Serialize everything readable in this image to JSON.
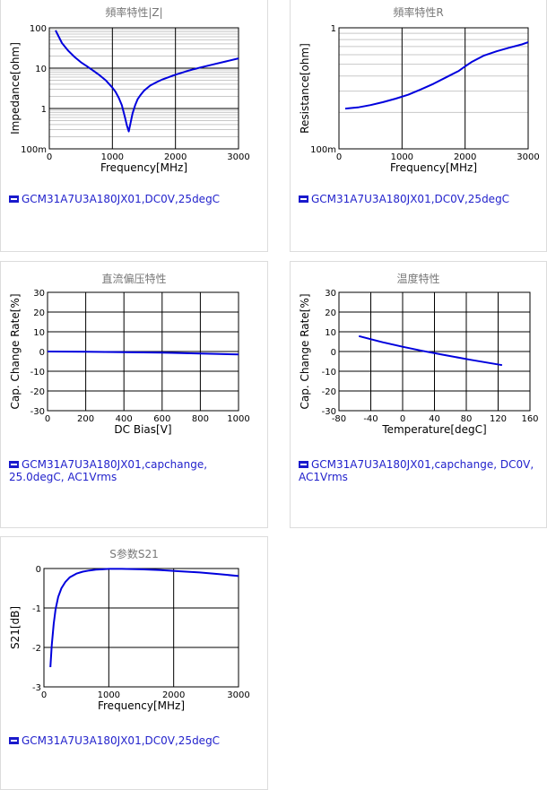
{
  "colors": {
    "series": "#0000dd",
    "title": "#777777",
    "legend_text": "#2222cc",
    "grid_major": "#000000",
    "grid_minor": "#c8c8c8"
  },
  "chart_data": [
    {
      "id": "impedance",
      "type": "line",
      "title": "頻率特性|Z|",
      "xlabel": "Frequency[MHz]",
      "ylabel": "Impedance[ohm]",
      "xlim": [
        0,
        3000
      ],
      "ylim": [
        0.1,
        100
      ],
      "yscale": "log",
      "xticks": [
        "0",
        "1000",
        "2000",
        "3000"
      ],
      "yticks": [
        "100",
        "10",
        "1",
        "100m"
      ],
      "legend": "GCM31A7U3A180JX01,DC0V,25degC",
      "series": [
        {
          "x": [
            100,
            200,
            300,
            400,
            500,
            600,
            700,
            800,
            900,
            1000,
            1050,
            1100,
            1150,
            1200,
            1230,
            1260,
            1290,
            1320,
            1360,
            1400,
            1450,
            1500,
            1600,
            1700,
            1800,
            2000,
            2200,
            2400,
            2600,
            2800,
            3000
          ],
          "y": [
            86,
            42,
            27,
            19,
            14,
            11,
            8.6,
            6.6,
            4.9,
            3.3,
            2.6,
            1.85,
            1.2,
            0.6,
            0.38,
            0.27,
            0.45,
            0.75,
            1.2,
            1.7,
            2.2,
            2.75,
            3.7,
            4.5,
            5.3,
            6.9,
            8.6,
            10.4,
            12.4,
            14.7,
            17.5
          ]
        }
      ]
    },
    {
      "id": "resistance",
      "type": "line",
      "title": "頻率特性R",
      "xlabel": "Frequency[MHz]",
      "ylabel": "Resistance[ohm]",
      "xlim": [
        0,
        3000
      ],
      "ylim": [
        0.1,
        1
      ],
      "yscale": "log",
      "xticks": [
        "0",
        "1000",
        "2000",
        "3000"
      ],
      "yticks": [
        "1",
        "100m"
      ],
      "legend": "GCM31A7U3A180JX01,DC0V,25degC",
      "series": [
        {
          "x": [
            100,
            300,
            500,
            700,
            900,
            1100,
            1300,
            1500,
            1700,
            1900,
            2000,
            2100,
            2300,
            2500,
            2700,
            2900,
            3000
          ],
          "y": [
            0.215,
            0.22,
            0.23,
            0.243,
            0.26,
            0.28,
            0.31,
            0.345,
            0.39,
            0.44,
            0.48,
            0.52,
            0.59,
            0.64,
            0.685,
            0.73,
            0.76
          ]
        }
      ]
    },
    {
      "id": "dcbias",
      "type": "line",
      "title": "直流偏压特性",
      "xlabel": "DC Bias[V]",
      "ylabel": "Cap. Change Rate[%]",
      "xlim": [
        0,
        1000
      ],
      "ylim": [
        -30,
        30
      ],
      "xticks": [
        "0",
        "200",
        "400",
        "600",
        "800",
        "1000"
      ],
      "yticks": [
        "30",
        "20",
        "10",
        "0",
        "-10",
        "-20",
        "-30"
      ],
      "legend": "GCM31A7U3A180JX01,capchange, 25.0degC, AC1Vrms",
      "series": [
        {
          "x": [
            0,
            200,
            400,
            600,
            800,
            1000
          ],
          "y": [
            0,
            -0.1,
            -0.3,
            -0.6,
            -1.0,
            -1.5
          ]
        }
      ]
    },
    {
      "id": "temperature",
      "type": "line",
      "title": "温度特性",
      "xlabel": "Temperature[degC]",
      "ylabel": "Cap. Change Rate[%]",
      "xlim": [
        -80,
        160
      ],
      "ylim": [
        -30,
        30
      ],
      "xticks": [
        "-80",
        "-40",
        "0",
        "40",
        "80",
        "120",
        "160"
      ],
      "yticks": [
        "30",
        "20",
        "10",
        "0",
        "-10",
        "-20",
        "-30"
      ],
      "legend": "GCM31A7U3A180JX01,capchange, DC0V, AC1Vrms",
      "series": [
        {
          "x": [
            -55,
            -25,
            0,
            25,
            50,
            85,
            125
          ],
          "y": [
            7.8,
            4.7,
            2.4,
            0.3,
            -1.6,
            -4.2,
            -6.9
          ]
        }
      ]
    },
    {
      "id": "s21",
      "type": "line",
      "title": "S参数S21",
      "xlabel": "Frequency[MHz]",
      "ylabel": "S21[dB]",
      "xlim": [
        0,
        3000
      ],
      "ylim": [
        -3,
        0
      ],
      "xticks": [
        "0",
        "1000",
        "2000",
        "3000"
      ],
      "yticks": [
        "0",
        "-1",
        "-2",
        "-3"
      ],
      "legend": "GCM31A7U3A180JX01,DC0V,25degC",
      "series": [
        {
          "x": [
            100,
            120,
            150,
            180,
            220,
            270,
            330,
            400,
            500,
            600,
            700,
            800,
            900,
            1000,
            1200,
            1500,
            1800,
            2100,
            2400,
            2700,
            3000
          ],
          "y": [
            -2.5,
            -1.95,
            -1.4,
            -1.03,
            -0.72,
            -0.5,
            -0.34,
            -0.22,
            -0.13,
            -0.08,
            -0.05,
            -0.03,
            -0.02,
            -0.01,
            -0.01,
            -0.02,
            -0.04,
            -0.07,
            -0.1,
            -0.14,
            -0.19
          ]
        }
      ]
    }
  ]
}
